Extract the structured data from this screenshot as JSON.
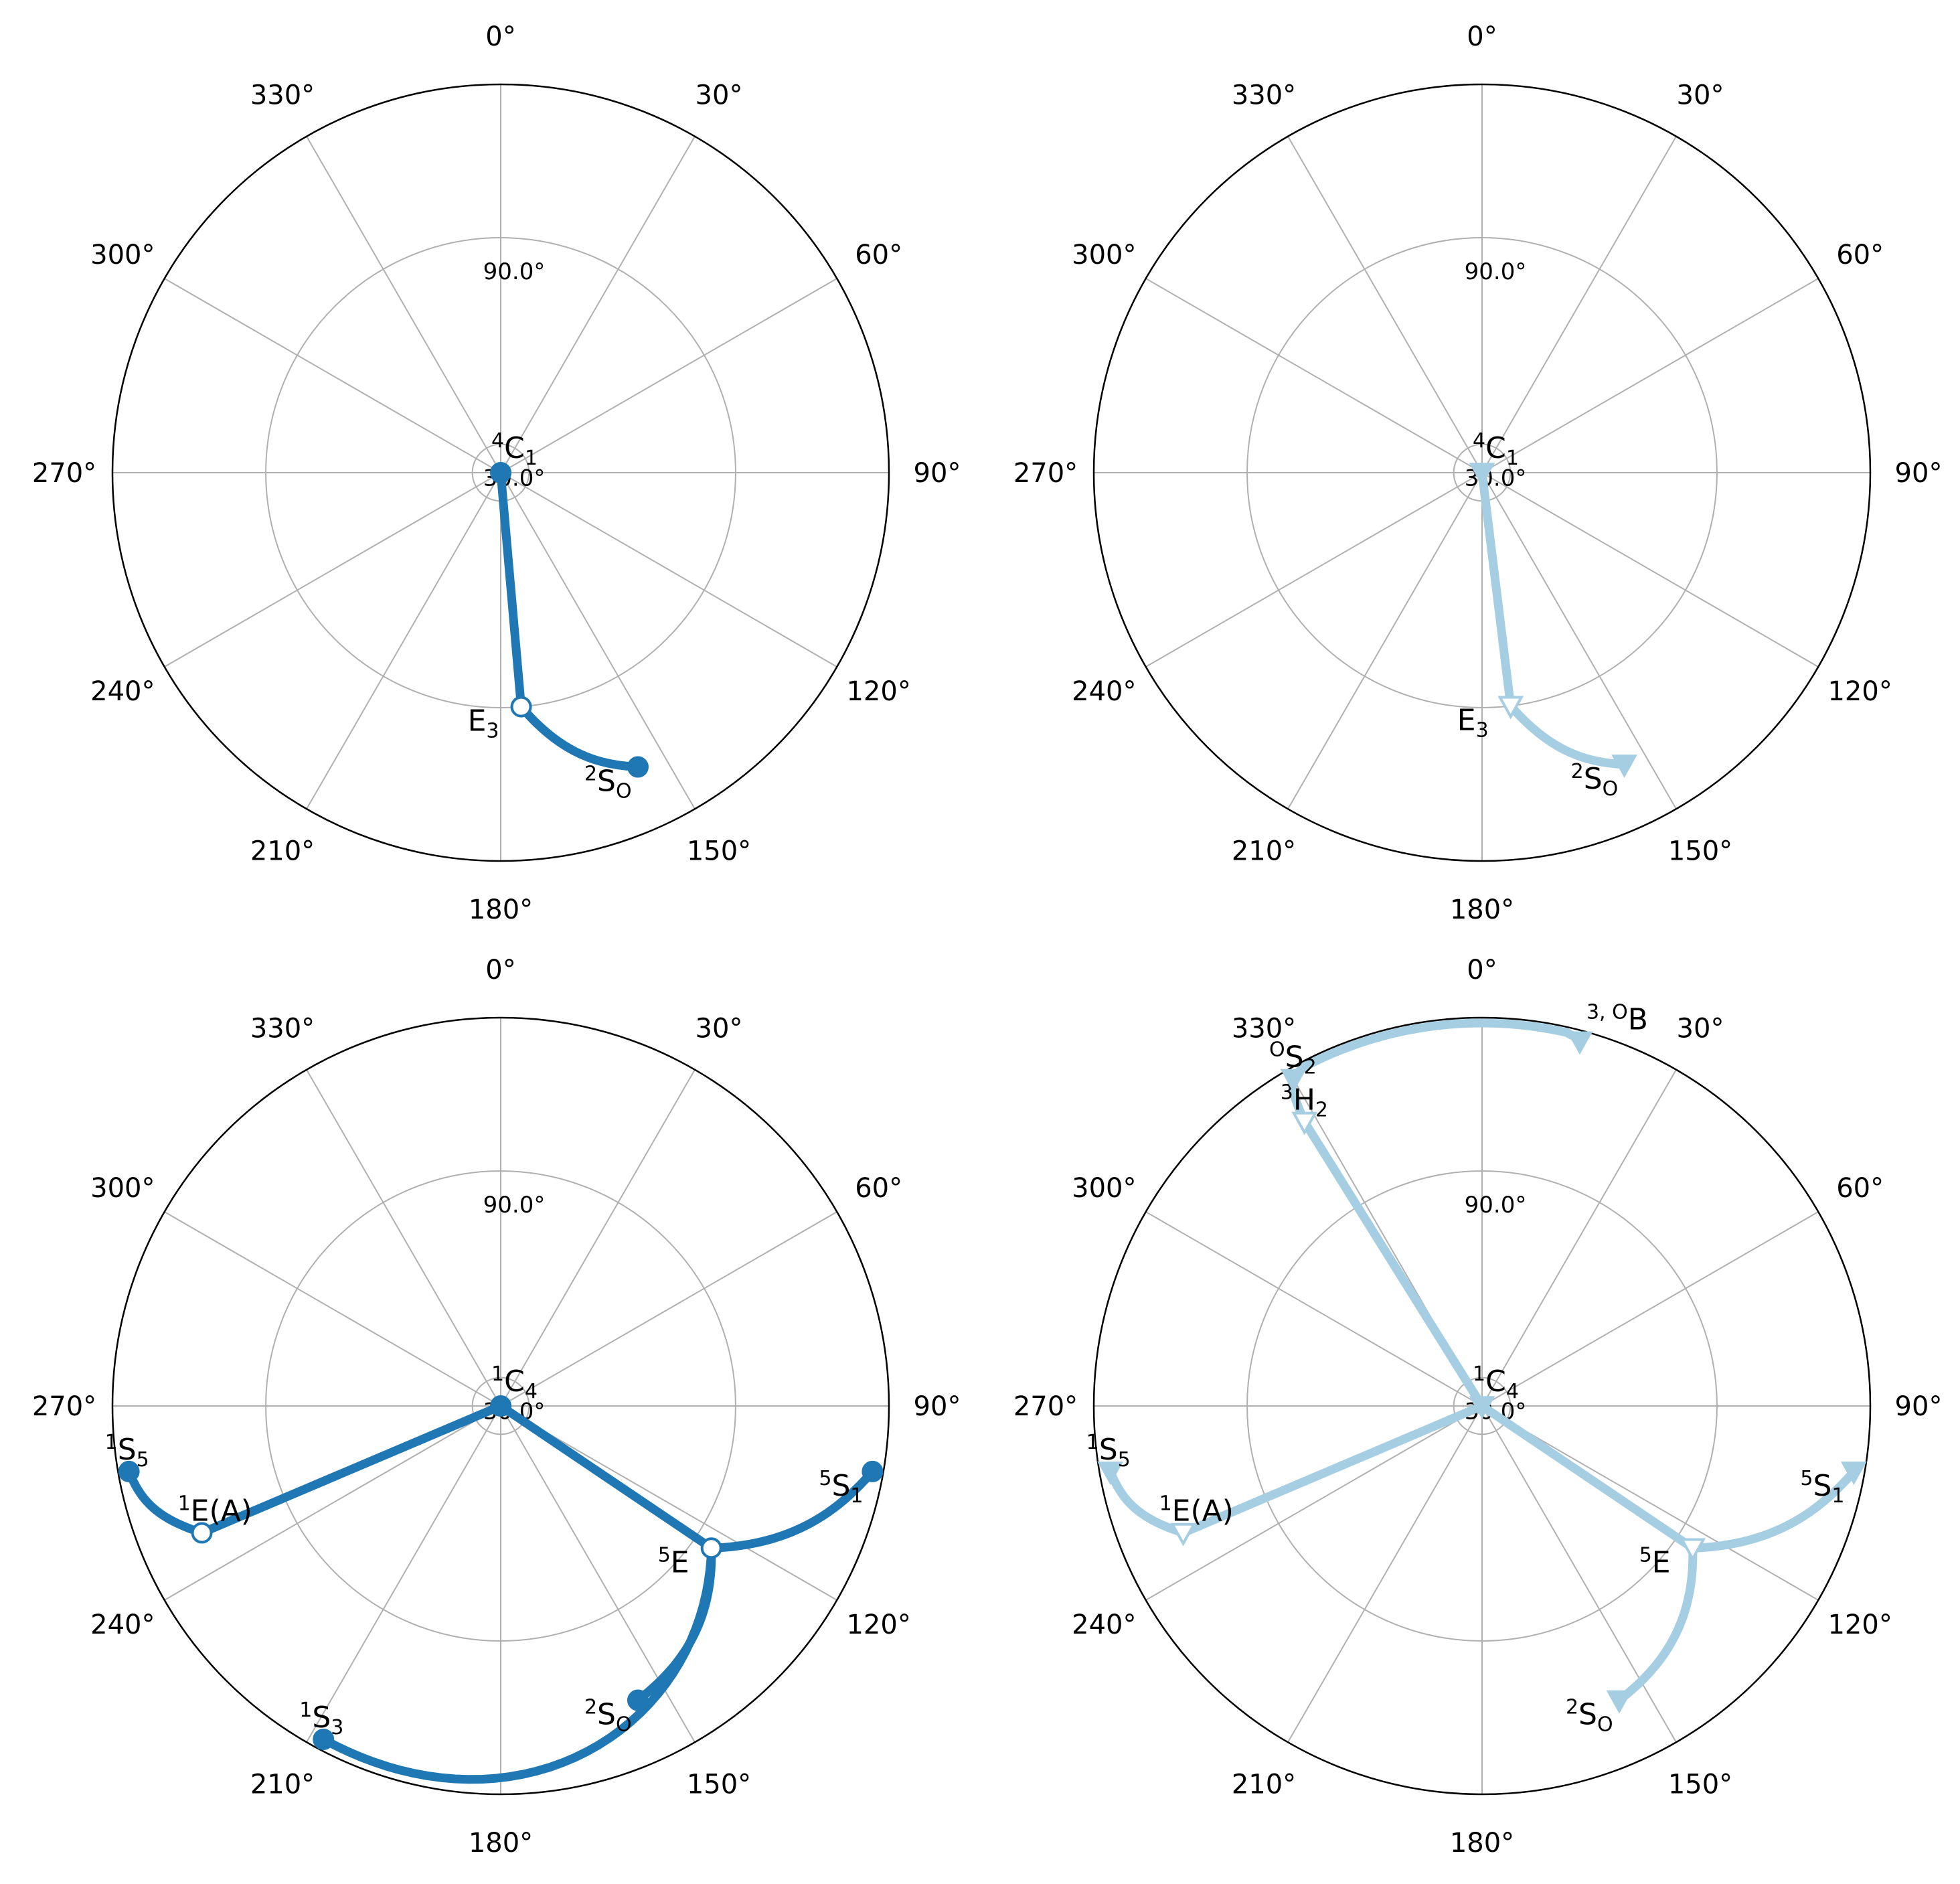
{
  "chart_data": [
    {
      "type": "polar-line",
      "panel": "top-left",
      "theta_ticks": [
        "0°",
        "30°",
        "60°",
        "90°",
        "120°",
        "150°",
        "180°",
        "210°",
        "240°",
        "270°",
        "300°",
        "330°"
      ],
      "r_ticks": [
        "30.0°",
        "90.0°"
      ],
      "r_grid": [
        30,
        90
      ],
      "rlim": [
        0,
        120
      ],
      "grid": true,
      "series": [
        {
          "color": "#1f77b4",
          "marker": "circle",
          "points": [
            {
              "theta": 0,
              "r": 0,
              "label_sup": "4",
              "label_main": "C",
              "label_sub": "1",
              "filled": true
            },
            {
              "theta": 175,
              "r": 90,
              "label_sup": "",
              "label_main": "E",
              "label_sub": "3",
              "filled": false
            },
            {
              "theta": 155,
              "r": 108,
              "label_sup": "2",
              "label_main": "S",
              "label_sub": "O",
              "filled": true
            }
          ]
        }
      ]
    },
    {
      "type": "polar-line",
      "panel": "top-right",
      "theta_ticks": [
        "0°",
        "30°",
        "60°",
        "90°",
        "120°",
        "150°",
        "180°",
        "210°",
        "240°",
        "270°",
        "300°",
        "330°"
      ],
      "r_ticks": [
        "30.0°",
        "90.0°"
      ],
      "r_grid": [
        30,
        90
      ],
      "rlim": [
        0,
        120
      ],
      "grid": true,
      "series": [
        {
          "color": "#a6cee3",
          "marker": "triangle-down",
          "points": [
            {
              "theta": 0,
              "r": 0,
              "label_sup": "4",
              "label_main": "C",
              "label_sub": "1",
              "filled": true
            },
            {
              "theta": 173,
              "r": 90,
              "label_sup": "",
              "label_main": "E",
              "label_sub": "3",
              "filled": false
            },
            {
              "theta": 154,
              "r": 108,
              "label_sup": "2",
              "label_main": "S",
              "label_sub": "O",
              "filled": true
            }
          ]
        }
      ]
    },
    {
      "type": "polar-line",
      "panel": "bottom-left",
      "theta_ticks": [
        "0°",
        "30°",
        "60°",
        "90°",
        "120°",
        "150°",
        "180°",
        "210°",
        "240°",
        "270°",
        "300°",
        "330°"
      ],
      "r_ticks": [
        "30.0°",
        "90.0°"
      ],
      "r_grid": [
        30,
        90
      ],
      "rlim": [
        0,
        120
      ],
      "grid": true,
      "series": [
        {
          "color": "#1f77b4",
          "marker": "circle",
          "points": [
            {
              "theta": 0,
              "r": 0,
              "label_sup": "1",
              "label_main": "C",
              "label_sub": "4",
              "filled": true
            },
            {
              "theta": 260,
              "r": 118,
              "label_sup": "1",
              "label_main": "S",
              "label_sub": "5",
              "filled": true
            },
            {
              "theta": 247,
              "r": 108,
              "label_sup": "1",
              "label_main": "E(A)",
              "label_sub": "",
              "filled": false
            },
            {
              "theta": 100,
              "r": 118,
              "label_sup": "5",
              "label_main": "S",
              "label_sub": "1",
              "filled": true
            },
            {
              "theta": 124,
              "r": 94,
              "label_sup": "5",
              "label_main": "E",
              "label_sub": "",
              "filled": false
            },
            {
              "theta": 155,
              "r": 108,
              "label_sup": "2",
              "label_main": "S",
              "label_sub": "O",
              "filled": true
            },
            {
              "theta": 208,
              "r": 118,
              "label_sup": "1",
              "label_main": "S",
              "label_sub": "3",
              "filled": true
            }
          ]
        }
      ]
    },
    {
      "type": "polar-line",
      "panel": "bottom-right",
      "theta_ticks": [
        "0°",
        "30°",
        "60°",
        "90°",
        "120°",
        "150°",
        "180°",
        "210°",
        "240°",
        "270°",
        "300°",
        "330°"
      ],
      "r_ticks": [
        "30.0°",
        "90.0°"
      ],
      "r_grid": [
        30,
        90
      ],
      "rlim": [
        0,
        120
      ],
      "grid": true,
      "series": [
        {
          "color": "#a6cee3",
          "marker": "triangle-down",
          "points": [
            {
              "theta": 0,
              "r": 0,
              "label_sup": "1",
              "label_main": "C",
              "label_sub": "4",
              "filled": true
            },
            {
              "theta": 260,
              "r": 118,
              "label_sup": "1",
              "label_main": "S",
              "label_sub": "5",
              "filled": true
            },
            {
              "theta": 247,
              "r": 108,
              "label_sup": "1",
              "label_main": "E(A)",
              "label_sub": "",
              "filled": false
            },
            {
              "theta": 100,
              "r": 118,
              "label_sup": "5",
              "label_main": "S",
              "label_sub": "1",
              "filled": true
            },
            {
              "theta": 124,
              "r": 94,
              "label_sup": "5",
              "label_main": "E",
              "label_sub": "",
              "filled": false
            },
            {
              "theta": 155,
              "r": 108,
              "label_sup": "2",
              "label_main": "S",
              "label_sub": "O",
              "filled": true
            },
            {
              "theta": 328,
              "r": 110,
              "label_sup": "3",
              "label_main": "H",
              "label_sub": "2",
              "filled": false
            },
            {
              "theta": 330,
              "r": 118,
              "label_sup": "O",
              "label_main": "S",
              "label_sub": "2",
              "filled": true
            },
            {
              "theta": 15,
              "r": 118,
              "label_sup": "3, O",
              "label_main": "B",
              "label_sub": "",
              "filled": true
            }
          ]
        }
      ]
    }
  ]
}
